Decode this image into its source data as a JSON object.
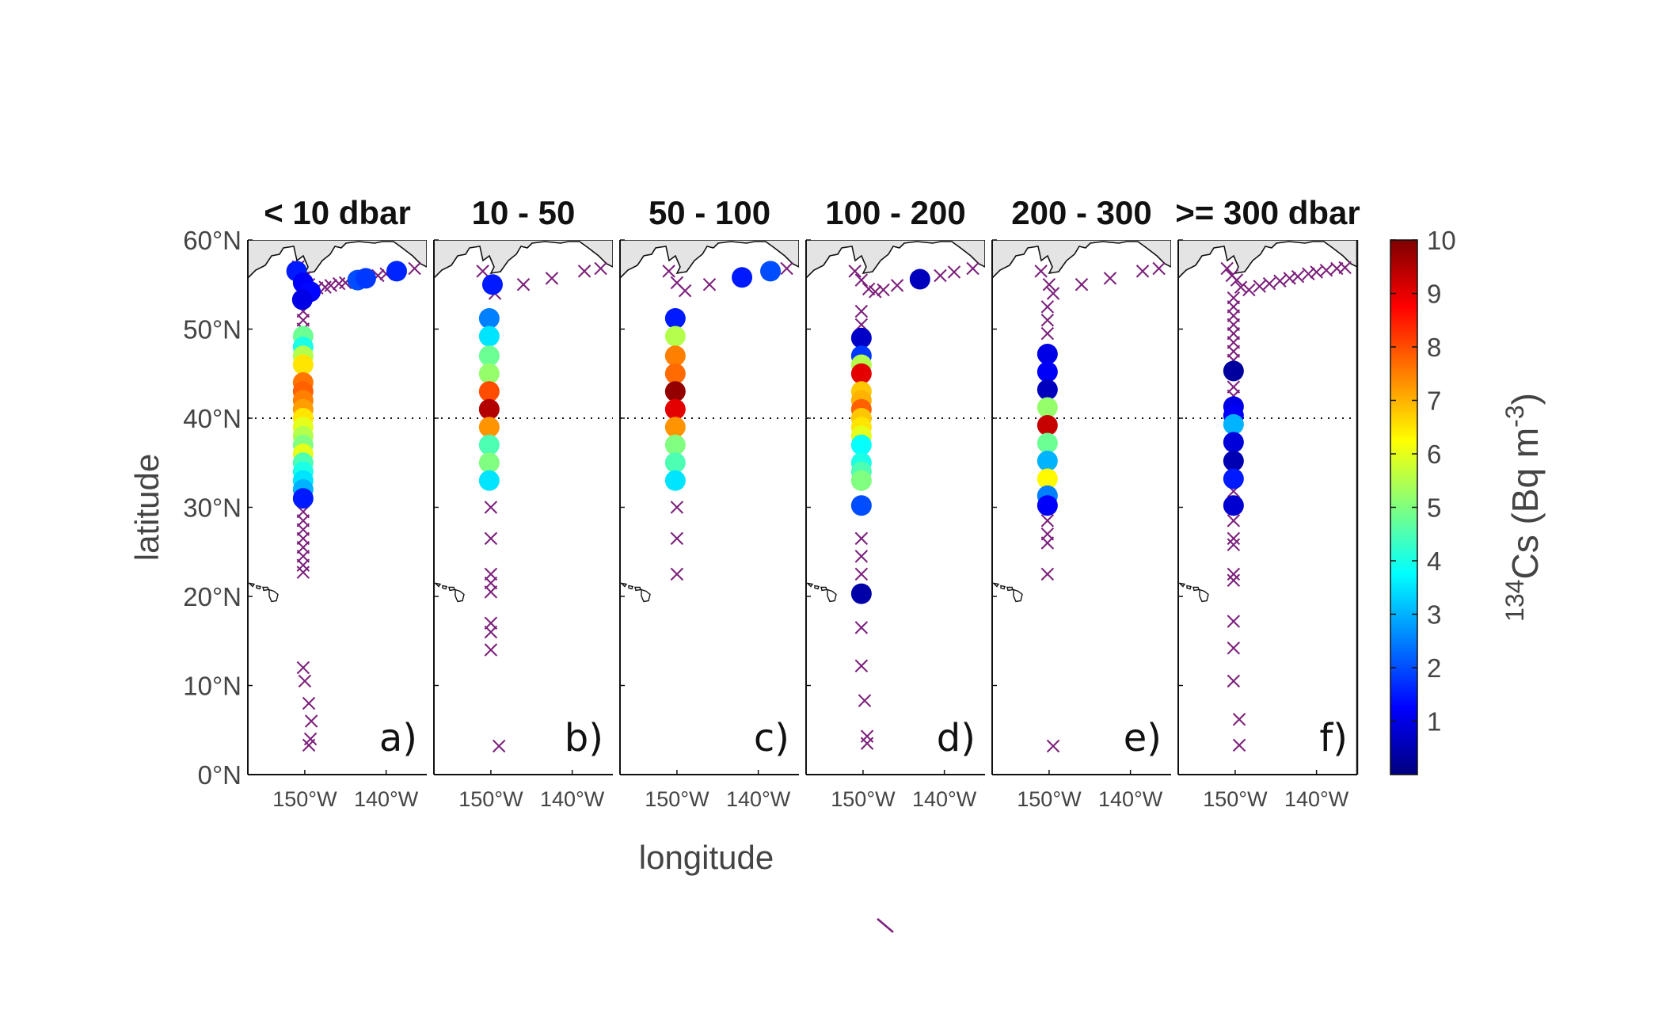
{
  "chart_data": {
    "type": "scatter",
    "xlabel": "longitude",
    "ylabel": "latitude",
    "ylim": [
      0,
      60
    ],
    "xlim": [
      -157,
      -135
    ],
    "reference_line_lat": 40,
    "y_ticks": [
      {
        "value": 0,
        "label": "0°N"
      },
      {
        "value": 10,
        "label": "10°N"
      },
      {
        "value": 20,
        "label": "20°N"
      },
      {
        "value": 30,
        "label": "30°N"
      },
      {
        "value": 40,
        "label": "40°N"
      },
      {
        "value": 50,
        "label": "50°N"
      },
      {
        "value": 60,
        "label": "60°N"
      }
    ],
    "x_ticks": [
      {
        "value": -150,
        "label": "150°W"
      },
      {
        "value": -140,
        "label": "140°W"
      }
    ],
    "colorbar": {
      "label_base": "Cs (Bq m",
      "label_isotope": "134",
      "label_exp": "-3",
      "label_close": ")",
      "min": 0,
      "max": 10,
      "ticks": [
        "1",
        "2",
        "3",
        "4",
        "5",
        "6",
        "7",
        "8",
        "9",
        "10"
      ],
      "colormap": "jet"
    },
    "panels": [
      {
        "title": "< 10 dbar",
        "letter": "a)",
        "samples": [
          {
            "lon": -151,
            "lat": 56.5,
            "value": 1.5
          },
          {
            "lon": -150.2,
            "lat": 55.2,
            "value": 1.2
          },
          {
            "lon": -149.3,
            "lat": 54.2,
            "value": 1.3
          },
          {
            "lon": -150.3,
            "lat": 53.3,
            "value": 1.0
          },
          {
            "lon": -143.5,
            "lat": 55.5,
            "value": 2.0
          },
          {
            "lon": -142.5,
            "lat": 55.7,
            "value": 1.8
          },
          {
            "lon": -138.7,
            "lat": 56.5,
            "value": 1.6
          },
          {
            "lon": -150.2,
            "lat": 49.2,
            "value": 4.8
          },
          {
            "lon": -150.2,
            "lat": 48.0,
            "value": 4.0
          },
          {
            "lon": -150.2,
            "lat": 47.0,
            "value": 5.5
          },
          {
            "lon": -150.2,
            "lat": 46.0,
            "value": 6.5
          },
          {
            "lon": -150.2,
            "lat": 44.0,
            "value": 7.6
          },
          {
            "lon": -150.2,
            "lat": 43.0,
            "value": 7.8
          },
          {
            "lon": -150.2,
            "lat": 42.0,
            "value": 7.5
          },
          {
            "lon": -150.2,
            "lat": 41.0,
            "value": 7.2
          },
          {
            "lon": -150.2,
            "lat": 40.0,
            "value": 6.5
          },
          {
            "lon": -150.2,
            "lat": 39.0,
            "value": 6.0
          },
          {
            "lon": -150.2,
            "lat": 38.0,
            "value": 5.5
          },
          {
            "lon": -150.2,
            "lat": 37.0,
            "value": 5.0
          },
          {
            "lon": -150.2,
            "lat": 36.0,
            "value": 6.0
          },
          {
            "lon": -150.2,
            "lat": 35.0,
            "value": 4.5
          },
          {
            "lon": -150.2,
            "lat": 34.0,
            "value": 4.0
          },
          {
            "lon": -150.2,
            "lat": 33.0,
            "value": 3.5
          },
          {
            "lon": -150.2,
            "lat": 32.0,
            "value": 3.0
          },
          {
            "lon": -150.2,
            "lat": 31.0,
            "value": 1.5
          }
        ],
        "no_detect": [
          {
            "lon": -150.8,
            "lat": 57.0
          },
          {
            "lon": -150.0,
            "lat": 55.8
          },
          {
            "lon": -149.5,
            "lat": 55.0
          },
          {
            "lon": -148.5,
            "lat": 54.6
          },
          {
            "lon": -147.5,
            "lat": 54.7
          },
          {
            "lon": -146.8,
            "lat": 54.9
          },
          {
            "lon": -145.8,
            "lat": 55.1
          },
          {
            "lon": -145.0,
            "lat": 55.2
          },
          {
            "lon": -141.0,
            "lat": 56.0
          },
          {
            "lon": -140.0,
            "lat": 56.2
          },
          {
            "lon": -136.5,
            "lat": 56.8
          },
          {
            "lon": -150.2,
            "lat": 52.0
          },
          {
            "lon": -150.2,
            "lat": 51.0
          },
          {
            "lon": -150.2,
            "lat": 50.0
          },
          {
            "lon": -150.2,
            "lat": 29.5
          },
          {
            "lon": -150.2,
            "lat": 28.5
          },
          {
            "lon": -150.2,
            "lat": 27.5
          },
          {
            "lon": -150.2,
            "lat": 26.5
          },
          {
            "lon": -150.2,
            "lat": 25.5
          },
          {
            "lon": -150.2,
            "lat": 24.5
          },
          {
            "lon": -150.2,
            "lat": 23.5
          },
          {
            "lon": -150.2,
            "lat": 22.7
          },
          {
            "lon": -150.2,
            "lat": 12.0
          },
          {
            "lon": -150.0,
            "lat": 10.5
          },
          {
            "lon": -149.5,
            "lat": 8.0
          },
          {
            "lon": -149.2,
            "lat": 6.0
          },
          {
            "lon": -149.3,
            "lat": 4.0
          },
          {
            "lon": -149.5,
            "lat": 3.3
          }
        ]
      },
      {
        "title": "10 - 50",
        "letter": "b)",
        "samples": [
          {
            "lon": -149.8,
            "lat": 55.0,
            "value": 1.5
          },
          {
            "lon": -150.2,
            "lat": 51.2,
            "value": 2.5
          },
          {
            "lon": -150.2,
            "lat": 49.2,
            "value": 3.5
          },
          {
            "lon": -150.2,
            "lat": 47.0,
            "value": 4.8
          },
          {
            "lon": -150.2,
            "lat": 45.0,
            "value": 5.2
          },
          {
            "lon": -150.2,
            "lat": 43.0,
            "value": 8.0
          },
          {
            "lon": -150.2,
            "lat": 41.0,
            "value": 9.5
          },
          {
            "lon": -150.2,
            "lat": 39.0,
            "value": 7.3
          },
          {
            "lon": -150.2,
            "lat": 37.0,
            "value": 4.5
          },
          {
            "lon": -150.2,
            "lat": 35.0,
            "value": 5.0
          },
          {
            "lon": -150.2,
            "lat": 33.0,
            "value": 3.5
          }
        ],
        "no_detect": [
          {
            "lon": -151.0,
            "lat": 56.5
          },
          {
            "lon": -149.5,
            "lat": 54.0
          },
          {
            "lon": -146.0,
            "lat": 55.0
          },
          {
            "lon": -142.5,
            "lat": 55.7
          },
          {
            "lon": -138.5,
            "lat": 56.5
          },
          {
            "lon": -136.5,
            "lat": 56.8
          },
          {
            "lon": -150.0,
            "lat": 30.0
          },
          {
            "lon": -150.0,
            "lat": 26.5
          },
          {
            "lon": -150.0,
            "lat": 22.5
          },
          {
            "lon": -150.0,
            "lat": 21.5
          },
          {
            "lon": -150.0,
            "lat": 20.5
          },
          {
            "lon": -150.0,
            "lat": 17.0
          },
          {
            "lon": -150.0,
            "lat": 16.0
          },
          {
            "lon": -150.0,
            "lat": 14.0
          },
          {
            "lon": -149.0,
            "lat": 3.2
          }
        ]
      },
      {
        "title": "50 - 100",
        "letter": "c)",
        "samples": [
          {
            "lon": -150.2,
            "lat": 51.2,
            "value": 1.5
          },
          {
            "lon": -150.2,
            "lat": 49.2,
            "value": 5.5
          },
          {
            "lon": -150.2,
            "lat": 47.0,
            "value": 7.5
          },
          {
            "lon": -150.2,
            "lat": 45.0,
            "value": 7.7
          },
          {
            "lon": -150.2,
            "lat": 43.0,
            "value": 9.8
          },
          {
            "lon": -150.2,
            "lat": 41.0,
            "value": 9.0
          },
          {
            "lon": -150.2,
            "lat": 39.0,
            "value": 7.3
          },
          {
            "lon": -150.2,
            "lat": 37.0,
            "value": 5.0
          },
          {
            "lon": -150.2,
            "lat": 35.0,
            "value": 4.5
          },
          {
            "lon": -150.2,
            "lat": 33.0,
            "value": 3.5
          },
          {
            "lon": -142.0,
            "lat": 55.8,
            "value": 1.5
          },
          {
            "lon": -138.5,
            "lat": 56.5,
            "value": 2.0
          }
        ],
        "no_detect": [
          {
            "lon": -151.0,
            "lat": 56.5
          },
          {
            "lon": -150.0,
            "lat": 55.2
          },
          {
            "lon": -149.0,
            "lat": 54.3
          },
          {
            "lon": -146.0,
            "lat": 55.0
          },
          {
            "lon": -136.5,
            "lat": 56.8
          },
          {
            "lon": -150.0,
            "lat": 30.0
          },
          {
            "lon": -150.0,
            "lat": 26.5
          },
          {
            "lon": -150.0,
            "lat": 22.5
          }
        ]
      },
      {
        "title": "100 - 200",
        "letter": "d)",
        "samples": [
          {
            "lon": -143.0,
            "lat": 55.6,
            "value": 0.6
          },
          {
            "lon": -150.2,
            "lat": 49.0,
            "value": 0.7
          },
          {
            "lon": -150.2,
            "lat": 47.0,
            "value": 1.8
          },
          {
            "lon": -150.2,
            "lat": 46.0,
            "value": 5.5
          },
          {
            "lon": -150.2,
            "lat": 45.0,
            "value": 9.0
          },
          {
            "lon": -150.2,
            "lat": 43.0,
            "value": 6.8
          },
          {
            "lon": -150.2,
            "lat": 42.0,
            "value": 7.0
          },
          {
            "lon": -150.2,
            "lat": 41.0,
            "value": 7.8
          },
          {
            "lon": -150.2,
            "lat": 40.0,
            "value": 6.8
          },
          {
            "lon": -150.2,
            "lat": 39.0,
            "value": 6.5
          },
          {
            "lon": -150.2,
            "lat": 38.0,
            "value": 6.0
          },
          {
            "lon": -150.2,
            "lat": 37.0,
            "value": 3.8
          },
          {
            "lon": -150.2,
            "lat": 35.0,
            "value": 4.0
          },
          {
            "lon": -150.2,
            "lat": 34.0,
            "value": 4.5
          },
          {
            "lon": -150.2,
            "lat": 33.0,
            "value": 5.0
          },
          {
            "lon": -150.2,
            "lat": 30.2,
            "value": 2.0
          },
          {
            "lon": -150.2,
            "lat": 20.3,
            "value": 0.4
          }
        ],
        "no_detect": [
          {
            "lon": -151.0,
            "lat": 56.5
          },
          {
            "lon": -150.2,
            "lat": 55.5
          },
          {
            "lon": -149.3,
            "lat": 54.5
          },
          {
            "lon": -148.5,
            "lat": 54.2
          },
          {
            "lon": -147.5,
            "lat": 54.4
          },
          {
            "lon": -145.8,
            "lat": 54.9
          },
          {
            "lon": -140.5,
            "lat": 56.0
          },
          {
            "lon": -138.8,
            "lat": 56.4
          },
          {
            "lon": -136.5,
            "lat": 56.8
          },
          {
            "lon": -150.2,
            "lat": 52.0
          },
          {
            "lon": -150.2,
            "lat": 50.5
          },
          {
            "lon": -150.2,
            "lat": 26.5
          },
          {
            "lon": -150.2,
            "lat": 24.5
          },
          {
            "lon": -150.2,
            "lat": 22.5
          },
          {
            "lon": -150.2,
            "lat": 16.5
          },
          {
            "lon": -150.2,
            "lat": 12.2
          },
          {
            "lon": -149.8,
            "lat": 8.3
          },
          {
            "lon": -149.5,
            "lat": 4.3
          },
          {
            "lon": -149.5,
            "lat": 3.5
          }
        ]
      },
      {
        "title": "200 - 300",
        "letter": "e)",
        "samples": [
          {
            "lon": -150.2,
            "lat": 47.2,
            "value": 1.0
          },
          {
            "lon": -150.2,
            "lat": 45.2,
            "value": 1.2
          },
          {
            "lon": -150.2,
            "lat": 43.2,
            "value": 0.6
          },
          {
            "lon": -150.2,
            "lat": 41.2,
            "value": 5.2
          },
          {
            "lon": -150.2,
            "lat": 39.2,
            "value": 9.3
          },
          {
            "lon": -150.2,
            "lat": 37.2,
            "value": 4.8
          },
          {
            "lon": -150.2,
            "lat": 35.2,
            "value": 3.0
          },
          {
            "lon": -150.2,
            "lat": 33.2,
            "value": 6.3
          },
          {
            "lon": -150.2,
            "lat": 31.3,
            "value": 2.5
          },
          {
            "lon": -150.2,
            "lat": 30.2,
            "value": 1.2
          }
        ],
        "no_detect": [
          {
            "lon": -151.0,
            "lat": 56.5
          },
          {
            "lon": -150.0,
            "lat": 55.0
          },
          {
            "lon": -149.5,
            "lat": 54.0
          },
          {
            "lon": -146.0,
            "lat": 55.0
          },
          {
            "lon": -142.5,
            "lat": 55.7
          },
          {
            "lon": -138.5,
            "lat": 56.5
          },
          {
            "lon": -136.5,
            "lat": 56.8
          },
          {
            "lon": -150.2,
            "lat": 52.5
          },
          {
            "lon": -150.2,
            "lat": 51.0
          },
          {
            "lon": -150.2,
            "lat": 49.5
          },
          {
            "lon": -150.2,
            "lat": 28.5
          },
          {
            "lon": -150.2,
            "lat": 27.0
          },
          {
            "lon": -150.2,
            "lat": 26.0
          },
          {
            "lon": -150.2,
            "lat": 22.5
          },
          {
            "lon": -149.5,
            "lat": 3.2
          }
        ]
      },
      {
        "title": ">= 300 dbar",
        "letter": "f)",
        "samples": [
          {
            "lon": -150.2,
            "lat": 45.3,
            "value": 0.3
          },
          {
            "lon": -150.2,
            "lat": 41.3,
            "value": 1.0
          },
          {
            "lon": -150.2,
            "lat": 40.3,
            "value": 1.2
          },
          {
            "lon": -150.2,
            "lat": 39.3,
            "value": 3.0
          },
          {
            "lon": -150.2,
            "lat": 37.3,
            "value": 0.9
          },
          {
            "lon": -150.2,
            "lat": 35.2,
            "value": 0.5
          },
          {
            "lon": -150.2,
            "lat": 33.2,
            "value": 1.5
          },
          {
            "lon": -150.2,
            "lat": 30.2,
            "value": 0.8
          }
        ],
        "no_detect": [
          {
            "lon": -151.0,
            "lat": 56.8
          },
          {
            "lon": -150.4,
            "lat": 56.0
          },
          {
            "lon": -149.8,
            "lat": 55.5
          },
          {
            "lon": -149.3,
            "lat": 54.7
          },
          {
            "lon": -148.3,
            "lat": 54.4
          },
          {
            "lon": -147.0,
            "lat": 54.8
          },
          {
            "lon": -145.8,
            "lat": 55.1
          },
          {
            "lon": -144.5,
            "lat": 55.4
          },
          {
            "lon": -143.3,
            "lat": 55.7
          },
          {
            "lon": -142.3,
            "lat": 55.9
          },
          {
            "lon": -141.0,
            "lat": 56.2
          },
          {
            "lon": -140.0,
            "lat": 56.4
          },
          {
            "lon": -138.8,
            "lat": 56.6
          },
          {
            "lon": -137.5,
            "lat": 56.8
          },
          {
            "lon": -136.5,
            "lat": 56.9
          },
          {
            "lon": -150.2,
            "lat": 53.5
          },
          {
            "lon": -150.2,
            "lat": 52.5
          },
          {
            "lon": -150.2,
            "lat": 51.5
          },
          {
            "lon": -150.2,
            "lat": 50.5
          },
          {
            "lon": -150.2,
            "lat": 49.5
          },
          {
            "lon": -150.2,
            "lat": 48.5
          },
          {
            "lon": -150.2,
            "lat": 47.5
          },
          {
            "lon": -150.2,
            "lat": 46.5
          },
          {
            "lon": -150.2,
            "lat": 43.5
          },
          {
            "lon": -150.2,
            "lat": 42.5
          },
          {
            "lon": -150.2,
            "lat": 38.3
          },
          {
            "lon": -150.2,
            "lat": 36.3
          },
          {
            "lon": -150.2,
            "lat": 34.2
          },
          {
            "lon": -150.2,
            "lat": 31.8
          },
          {
            "lon": -150.2,
            "lat": 28.5
          },
          {
            "lon": -150.2,
            "lat": 26.5
          },
          {
            "lon": -150.2,
            "lat": 25.8
          },
          {
            "lon": -150.2,
            "lat": 22.5
          },
          {
            "lon": -150.2,
            "lat": 21.8
          },
          {
            "lon": -150.2,
            "lat": 17.2
          },
          {
            "lon": -150.2,
            "lat": 14.2
          },
          {
            "lon": -150.2,
            "lat": 10.5
          },
          {
            "lon": -149.5,
            "lat": 6.2
          },
          {
            "lon": -149.5,
            "lat": 3.3
          }
        ]
      }
    ]
  }
}
